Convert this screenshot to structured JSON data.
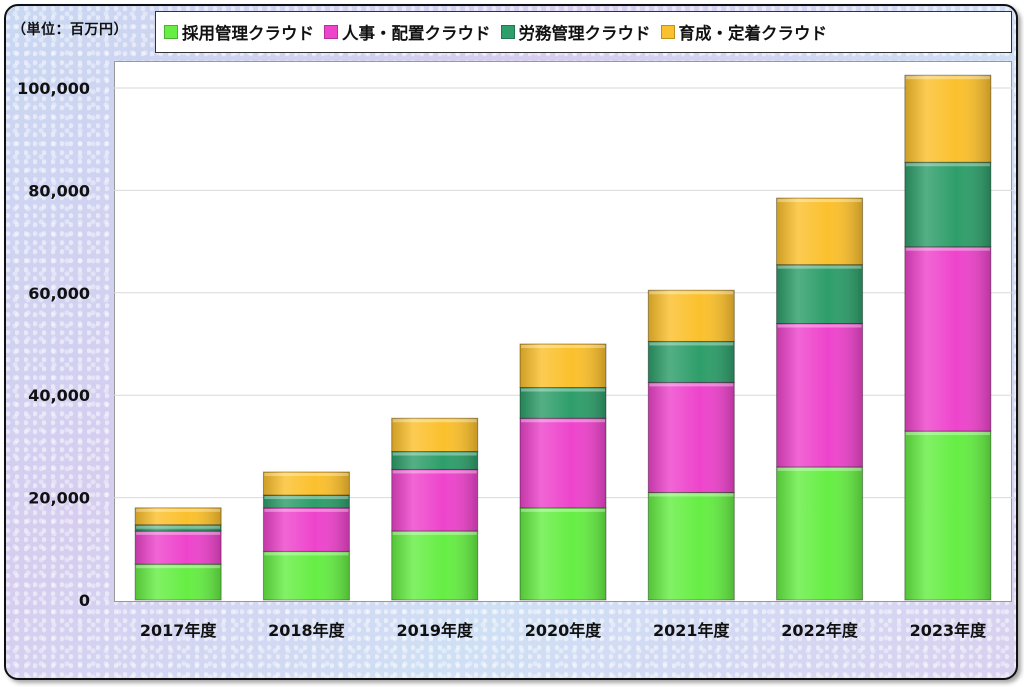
{
  "chart_data": {
    "type": "bar",
    "stacked": true,
    "unit_label": "（単位：百万円）",
    "categories": [
      "2017年度",
      "2018年度",
      "2019年度",
      "2020年度",
      "2021年度",
      "2022年度",
      "2023年度"
    ],
    "y_ticks": [
      "0",
      "20,000",
      "40,000",
      "60,000",
      "80,000",
      "100,000"
    ],
    "ylim": [
      0,
      105000
    ],
    "grid": true,
    "legend_position": "top",
    "series": [
      {
        "name": "採用管理クラウド",
        "color": "#66ee44",
        "values": [
          7000,
          9500,
          13500,
          18000,
          21000,
          26000,
          33000
        ]
      },
      {
        "name": "人事・配置クラウド",
        "color": "#ee44cc",
        "values": [
          6500,
          8500,
          12000,
          17500,
          21500,
          28000,
          36000
        ]
      },
      {
        "name": "労務管理クラウド",
        "color": "#2e9e6a",
        "values": [
          1200,
          2500,
          3500,
          6000,
          8000,
          11500,
          16500
        ]
      },
      {
        "name": "育成・定着クラウド",
        "color": "#fbc02d",
        "values": [
          3300,
          4500,
          6500,
          8500,
          10000,
          13000,
          17000
        ]
      }
    ]
  }
}
